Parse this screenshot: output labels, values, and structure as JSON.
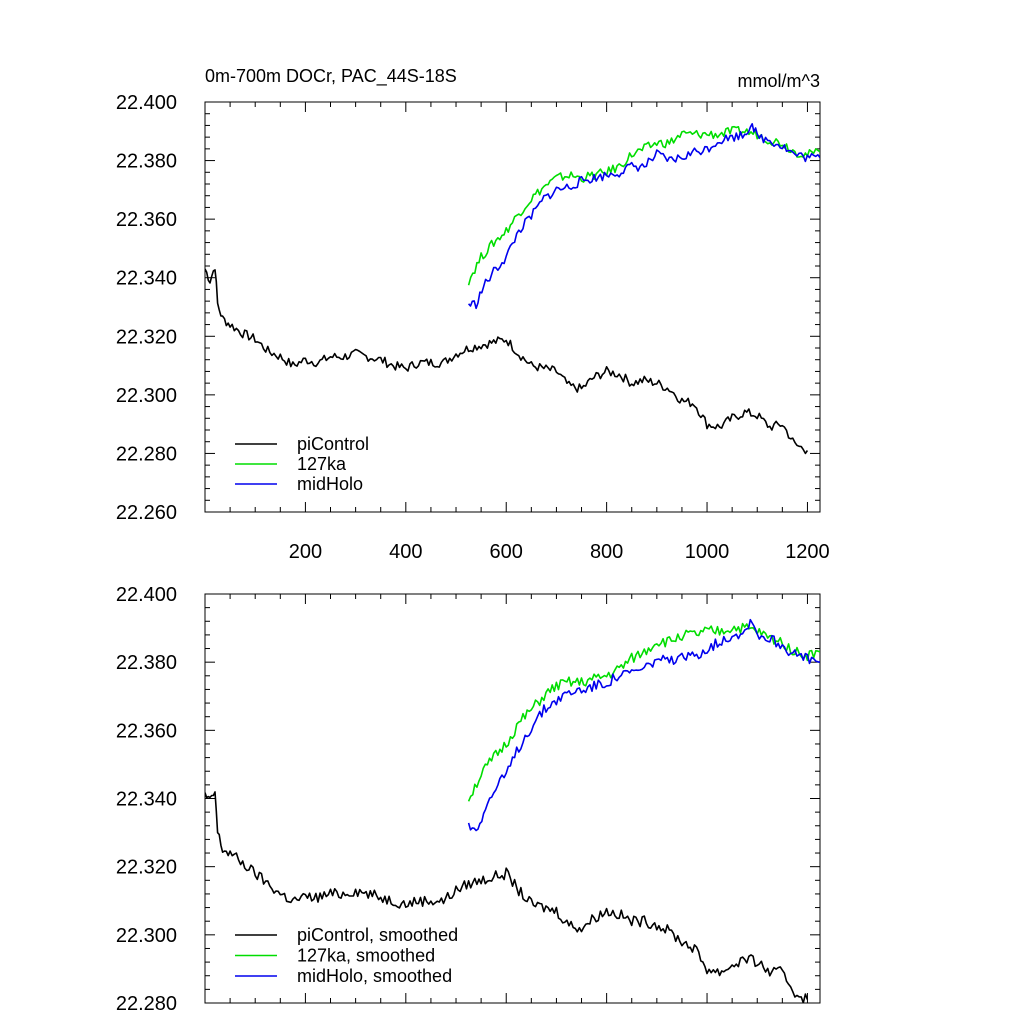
{
  "chart_data": [
    {
      "type": "line",
      "title": "0m-700m DOCr, PAC_44S-18S",
      "units": "mmol/m^3",
      "xlabel": "",
      "ylabel": "",
      "xlim": [
        0,
        1225
      ],
      "ylim": [
        22.26,
        22.4
      ],
      "xticks": [
        200,
        400,
        600,
        800,
        1000,
        1200
      ],
      "xtick_labels": [
        "200",
        "400",
        "600",
        "800",
        "1000",
        "1200"
      ],
      "yticks": [
        22.26,
        22.28,
        22.3,
        22.32,
        22.34,
        22.36,
        22.38,
        22.4
      ],
      "ytick_labels": [
        "22.260",
        "22.280",
        "22.300",
        "22.320",
        "22.340",
        "22.360",
        "22.380",
        "22.400"
      ],
      "legend_position": "bottom-left",
      "grid": false,
      "series": [
        {
          "name": "piControl",
          "color": "#000000",
          "x": [
            0,
            10,
            20,
            25,
            35,
            50,
            75,
            100,
            125,
            150,
            175,
            200,
            225,
            250,
            275,
            300,
            325,
            350,
            375,
            400,
            425,
            450,
            475,
            500,
            525,
            550,
            575,
            600,
            625,
            650,
            675,
            700,
            725,
            750,
            775,
            800,
            825,
            850,
            875,
            900,
            925,
            950,
            975,
            1000,
            1025,
            1050,
            1075,
            1100,
            1125,
            1150,
            1175,
            1200
          ],
          "y": [
            22.343,
            22.339,
            22.344,
            22.331,
            22.326,
            22.324,
            22.321,
            22.319,
            22.315,
            22.313,
            22.31,
            22.312,
            22.311,
            22.313,
            22.313,
            22.314,
            22.313,
            22.312,
            22.31,
            22.309,
            22.311,
            22.311,
            22.311,
            22.314,
            22.316,
            22.317,
            22.318,
            22.319,
            22.314,
            22.31,
            22.309,
            22.308,
            22.303,
            22.302,
            22.306,
            22.308,
            22.307,
            22.304,
            22.305,
            22.304,
            22.302,
            22.298,
            22.297,
            22.29,
            22.289,
            22.292,
            22.294,
            22.293,
            22.289,
            22.29,
            22.283,
            22.281
          ]
        },
        {
          "name": "127ka",
          "color": "#00dd00",
          "x": [
            525,
            550,
            575,
            600,
            625,
            650,
            675,
            700,
            725,
            750,
            775,
            800,
            825,
            850,
            875,
            900,
            925,
            950,
            975,
            1000,
            1025,
            1050,
            1075,
            1100,
            1125,
            1150,
            1175,
            1200,
            1225
          ],
          "y": [
            22.339,
            22.347,
            22.352,
            22.356,
            22.362,
            22.367,
            22.371,
            22.374,
            22.375,
            22.374,
            22.375,
            22.376,
            22.378,
            22.382,
            22.384,
            22.386,
            22.386,
            22.389,
            22.389,
            22.389,
            22.389,
            22.39,
            22.39,
            22.389,
            22.387,
            22.386,
            22.383,
            22.382,
            22.383
          ]
        },
        {
          "name": "midHolo",
          "color": "#0000ee",
          "x": [
            525,
            540,
            555,
            575,
            600,
            625,
            650,
            675,
            700,
            725,
            750,
            775,
            800,
            825,
            850,
            875,
            900,
            925,
            950,
            975,
            1000,
            1025,
            1050,
            1075,
            1090,
            1100,
            1125,
            1150,
            1175,
            1200,
            1225
          ],
          "y": [
            22.331,
            22.331,
            22.337,
            22.342,
            22.347,
            22.356,
            22.361,
            22.367,
            22.37,
            22.371,
            22.373,
            22.374,
            22.375,
            22.376,
            22.378,
            22.378,
            22.382,
            22.38,
            22.381,
            22.383,
            22.384,
            22.387,
            22.388,
            22.389,
            22.393,
            22.388,
            22.387,
            22.385,
            22.382,
            22.381,
            22.381
          ]
        }
      ]
    },
    {
      "type": "line",
      "title": "",
      "xlabel": "",
      "ylabel": "",
      "xlim": [
        0,
        1225
      ],
      "ylim": [
        22.28,
        22.4
      ],
      "xticks": [
        200,
        400,
        600,
        800,
        1000,
        1200
      ],
      "yticks": [
        22.28,
        22.3,
        22.32,
        22.34,
        22.36,
        22.38,
        22.4
      ],
      "ytick_labels": [
        "22.280",
        "22.300",
        "22.320",
        "22.340",
        "22.360",
        "22.380",
        "22.400"
      ],
      "legend_position": "bottom-left",
      "grid": false,
      "series": [
        {
          "name": "piControl, smoothed",
          "color": "#000000",
          "x": [
            0,
            10,
            20,
            25,
            35,
            50,
            75,
            100,
            125,
            150,
            175,
            200,
            225,
            250,
            275,
            300,
            325,
            350,
            375,
            400,
            425,
            450,
            475,
            500,
            525,
            550,
            575,
            600,
            625,
            650,
            675,
            700,
            725,
            750,
            775,
            800,
            825,
            850,
            875,
            900,
            925,
            950,
            975,
            1000,
            1025,
            1050,
            1075,
            1100,
            1125,
            1150,
            1175,
            1200
          ],
          "y": [
            22.341,
            22.339,
            22.342,
            22.33,
            22.325,
            22.324,
            22.321,
            22.318,
            22.315,
            22.312,
            22.31,
            22.311,
            22.311,
            22.312,
            22.312,
            22.313,
            22.312,
            22.311,
            22.31,
            22.309,
            22.31,
            22.31,
            22.31,
            22.313,
            22.315,
            22.316,
            22.317,
            22.318,
            22.313,
            22.309,
            22.308,
            22.307,
            22.303,
            22.302,
            22.305,
            22.307,
            22.306,
            22.304,
            22.304,
            22.303,
            22.301,
            22.298,
            22.296,
            22.29,
            22.289,
            22.291,
            22.293,
            22.292,
            22.289,
            22.289,
            22.283,
            22.281
          ]
        },
        {
          "name": "127ka, smoothed",
          "color": "#00dd00",
          "x": [
            525,
            550,
            575,
            600,
            625,
            650,
            675,
            700,
            725,
            750,
            775,
            800,
            825,
            850,
            875,
            900,
            925,
            950,
            975,
            1000,
            1025,
            1050,
            1075,
            1100,
            1125,
            1150,
            1175,
            1200,
            1225
          ],
          "y": [
            22.34,
            22.347,
            22.352,
            22.356,
            22.362,
            22.366,
            22.37,
            22.373,
            22.374,
            22.374,
            22.375,
            22.376,
            22.378,
            22.381,
            22.383,
            22.386,
            22.386,
            22.388,
            22.388,
            22.389,
            22.389,
            22.39,
            22.39,
            22.389,
            22.387,
            22.386,
            22.383,
            22.382,
            22.383
          ]
        },
        {
          "name": "midHolo, smoothed",
          "color": "#0000ee",
          "x": [
            525,
            540,
            555,
            575,
            600,
            625,
            650,
            675,
            700,
            725,
            750,
            775,
            800,
            825,
            850,
            875,
            900,
            925,
            950,
            975,
            1000,
            1025,
            1050,
            1075,
            1090,
            1100,
            1125,
            1150,
            1175,
            1200,
            1225
          ],
          "y": [
            22.332,
            22.331,
            22.336,
            22.342,
            22.347,
            22.355,
            22.361,
            22.366,
            22.369,
            22.371,
            22.372,
            22.373,
            22.374,
            22.376,
            22.377,
            22.378,
            22.381,
            22.38,
            22.381,
            22.382,
            22.384,
            22.386,
            22.388,
            22.389,
            22.393,
            22.388,
            22.387,
            22.385,
            22.382,
            22.381,
            22.38
          ]
        }
      ]
    }
  ]
}
